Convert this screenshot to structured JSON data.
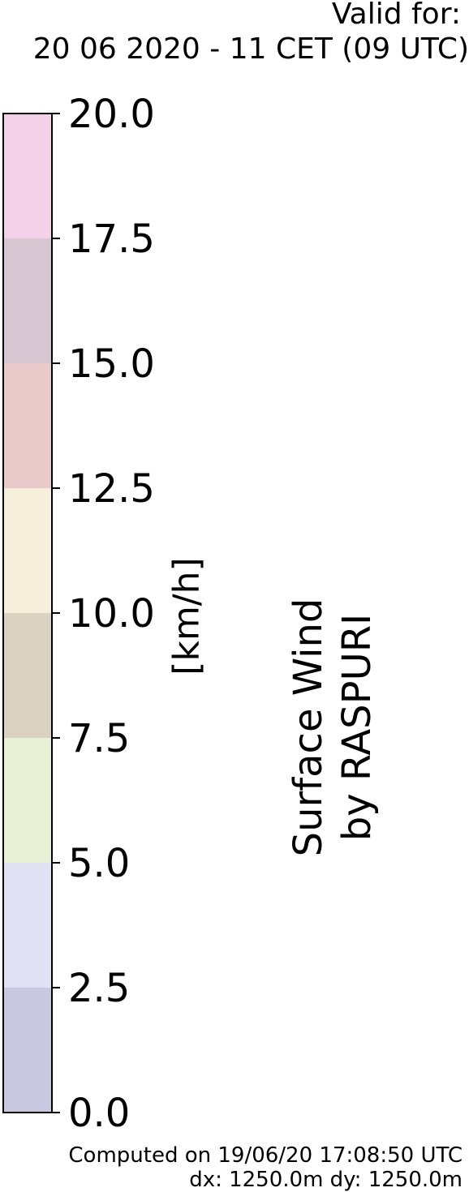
{
  "header": {
    "valid_label": "Valid for:",
    "valid_time": "20 06 2020 - 11 CET (09 UTC)"
  },
  "footer": {
    "computed": "Computed on 19/06/20 17:08:50 UTC",
    "grid": "dx: 1250.0m dy: 1250.0m"
  },
  "chart_data": {
    "type": "heatmap",
    "title": "Surface Wind",
    "subtitle": "by RASPURI",
    "ylabel": "[km/h]",
    "ylim": [
      0,
      20
    ],
    "ticks": [
      "0.0",
      "2.5",
      "5.0",
      "7.5",
      "10.0",
      "12.5",
      "15.0",
      "17.5",
      "20.0"
    ],
    "bins": [
      {
        "from": 0.0,
        "to": 2.5,
        "color": "#c8c9e0"
      },
      {
        "from": 2.5,
        "to": 5.0,
        "color": "#e0e2f3"
      },
      {
        "from": 5.0,
        "to": 7.5,
        "color": "#e8f1d6"
      },
      {
        "from": 7.5,
        "to": 10.0,
        "color": "#dad3c2"
      },
      {
        "from": 10.0,
        "to": 12.5,
        "color": "#f6efdc"
      },
      {
        "from": 12.5,
        "to": 15.0,
        "color": "#e9c9c9"
      },
      {
        "from": 15.0,
        "to": 17.5,
        "color": "#d8c6d3"
      },
      {
        "from": 17.5,
        "to": 20.0,
        "color": "#f2d1e9"
      }
    ]
  }
}
